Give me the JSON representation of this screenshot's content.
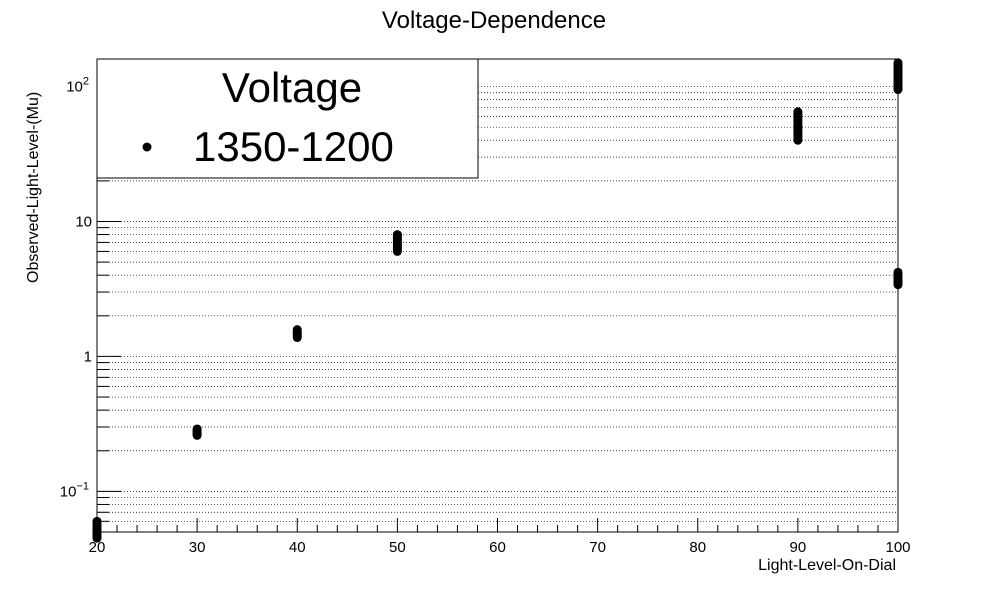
{
  "chart_data": {
    "type": "scatter",
    "title": "Voltage-Dependence",
    "xlabel": "Light-Level-On-Dial",
    "ylabel": "Observed-Light-Level-(Mu)",
    "xlim": [
      20,
      100
    ],
    "ylim": [
      0.05,
      160
    ],
    "yscale": "log",
    "grid": "horizontal minor log grid (dotted)",
    "x_ticks": [
      "20",
      "30",
      "40",
      "50",
      "60",
      "70",
      "80",
      "90",
      "100"
    ],
    "y_ticks": [
      {
        "value": 0.1,
        "base": "10",
        "exp": "−1"
      },
      {
        "value": 1,
        "label": "1"
      },
      {
        "value": 10,
        "label": "10"
      },
      {
        "value": 100,
        "base": "10",
        "exp": "2"
      }
    ],
    "legend": {
      "title": "Voltage",
      "position": "top-left"
    },
    "series": [
      {
        "name": "1350-1200",
        "color": "#000000",
        "marker": "filled-circle",
        "points": [
          {
            "x": 20,
            "y_min": 0.045,
            "y_max": 0.06
          },
          {
            "x": 30,
            "y_min": 0.26,
            "y_max": 0.29
          },
          {
            "x": 40,
            "y_min": 1.38,
            "y_max": 1.58
          },
          {
            "x": 50,
            "y_min": 6.0,
            "y_max": 8.0
          },
          {
            "x": 90,
            "y_min": 40,
            "y_max": 65
          },
          {
            "x": 100,
            "y_min": 95,
            "y_max": 150
          },
          {
            "x": 100,
            "y_min": 3.4,
            "y_max": 4.2
          }
        ]
      }
    ]
  }
}
